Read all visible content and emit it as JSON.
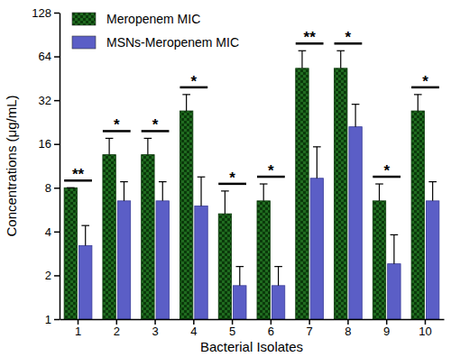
{
  "chart_data": {
    "type": "bar",
    "log": "y",
    "legend": "upper left",
    "xlabel": "Bacterial Isolates",
    "ylabel": "Concentrations (μg/mL)",
    "categories": [
      "1",
      "2",
      "3",
      "4",
      "5",
      "6",
      "7",
      "8",
      "9",
      "10"
    ],
    "series": [
      {
        "name": "Meropenem MIC",
        "color": "#1f6b1f",
        "values": [
          8,
          13.5,
          13.5,
          27,
          5.3,
          6.5,
          53,
          53,
          6.5,
          27
        ],
        "errors": [
          0,
          4,
          4,
          8,
          2.3,
          2,
          17,
          17,
          2,
          8
        ]
      },
      {
        "name": "MSNs-Meropenem MIC",
        "color": "#5b5ec6",
        "values": [
          3.2,
          6.5,
          6.5,
          6,
          1.7,
          1.7,
          9.3,
          21,
          2.4,
          6.5
        ],
        "errors": [
          1.2,
          2.3,
          2.3,
          3.5,
          0.6,
          0.6,
          6,
          9,
          1.4,
          2.3
        ]
      }
    ],
    "significance": [
      "**",
      "*",
      "*",
      "*",
      "*",
      "*",
      "**",
      "*",
      "*",
      "*"
    ],
    "ylim": [
      1,
      128
    ],
    "yticks": [
      1,
      2,
      4,
      8,
      16,
      32,
      64,
      128
    ]
  }
}
